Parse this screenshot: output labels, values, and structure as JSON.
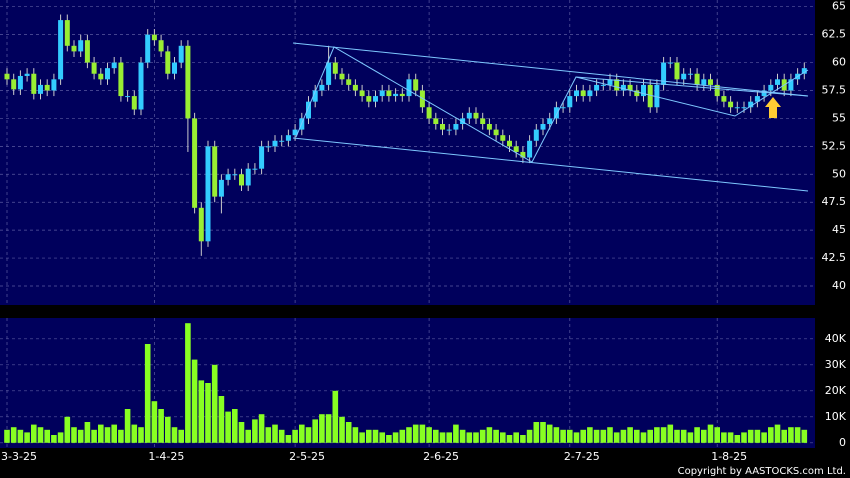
{
  "copyright": "Copyright by AASTOCKS.com Ltd.",
  "chart_data": [
    {
      "type": "candlestick",
      "up_color": "#33ccff",
      "down_color": "#99ee33",
      "grid": true,
      "ylim": [
        38.3,
        65.6
      ],
      "yticks": [
        40,
        42.5,
        45,
        47.5,
        50,
        52.5,
        55,
        57.5,
        60,
        62.5,
        65
      ],
      "open": [
        59.0,
        58.5,
        57.6,
        58.8,
        59.0,
        57.2,
        58.0,
        57.5,
        58.5,
        63.8,
        61.5,
        61.0,
        62.0,
        60.0,
        59.0,
        58.5,
        59.5,
        60.0,
        57.0,
        57.0,
        55.8,
        60.0,
        62.5,
        62.0,
        61.0,
        59.0,
        60.0,
        61.5,
        55.0,
        47.0,
        44.0,
        52.5,
        48.0,
        49.5,
        50.0,
        50.0,
        49.0,
        50.5,
        50.5,
        52.5,
        52.5,
        53.0,
        53.0,
        53.5,
        54.0,
        55.0,
        56.5,
        57.5,
        58.0,
        60.0,
        59.0,
        58.5,
        58.0,
        57.5,
        57.0,
        56.5,
        57.0,
        57.5,
        57.0,
        57.2,
        57.0,
        58.5,
        57.5,
        56.0,
        55.0,
        54.5,
        54.0,
        54.0,
        54.5,
        55.0,
        55.5,
        55.0,
        54.5,
        54.0,
        53.5,
        53.0,
        52.5,
        52.0,
        51.5,
        53.0,
        54.0,
        54.5,
        55.0,
        56.0,
        56.0,
        57.0,
        57.5,
        57.0,
        57.5,
        58.0,
        58.0,
        58.5,
        57.5,
        58.0,
        57.5,
        57.0,
        58.0,
        56.0,
        58.0,
        60.0,
        60.0,
        58.5,
        59.0,
        59.0,
        58.0,
        58.5,
        58.0,
        57.0,
        56.5,
        56.0,
        56.0,
        56.0,
        56.5,
        57.0,
        57.5,
        58.0,
        58.5,
        57.5,
        58.5,
        59.0
      ],
      "high": [
        59.5,
        59.0,
        59.3,
        59.5,
        59.5,
        58.5,
        58.5,
        59.0,
        64.3,
        64.3,
        62.0,
        62.5,
        62.5,
        60.5,
        59.5,
        60.0,
        60.5,
        60.5,
        57.5,
        57.5,
        60.5,
        63.0,
        63.0,
        62.5,
        61.5,
        60.5,
        62.0,
        62.0,
        55.5,
        47.5,
        53.0,
        53.0,
        50.0,
        50.5,
        50.5,
        50.5,
        51.0,
        51.0,
        53.0,
        53.0,
        53.5,
        53.5,
        54.0,
        54.5,
        55.5,
        57.0,
        58.0,
        58.5,
        61.5,
        60.5,
        59.5,
        59.0,
        58.5,
        58.0,
        57.5,
        57.5,
        58.0,
        58.0,
        57.7,
        57.7,
        59.0,
        59.0,
        58.0,
        56.5,
        55.5,
        55.0,
        54.5,
        55.0,
        55.5,
        56.0,
        56.0,
        55.5,
        55.0,
        54.5,
        54.0,
        53.5,
        53.0,
        52.5,
        53.5,
        54.5,
        55.0,
        55.5,
        56.5,
        56.5,
        57.5,
        58.0,
        58.0,
        58.0,
        58.5,
        58.5,
        59.0,
        59.0,
        58.5,
        58.5,
        58.0,
        58.5,
        58.5,
        58.5,
        60.5,
        60.5,
        60.5,
        59.5,
        59.5,
        59.5,
        59.0,
        59.0,
        58.5,
        57.5,
        57.0,
        56.5,
        56.5,
        57.0,
        57.5,
        58.0,
        58.5,
        59.0,
        59.0,
        59.0,
        59.5,
        60.0
      ],
      "low": [
        58.0,
        57.1,
        57.1,
        58.3,
        56.7,
        56.7,
        57.0,
        57.0,
        58.0,
        61.0,
        60.5,
        60.5,
        59.5,
        58.5,
        58.0,
        58.0,
        59.0,
        56.5,
        56.5,
        55.3,
        55.3,
        59.5,
        61.5,
        60.5,
        58.5,
        58.5,
        59.5,
        52.0,
        46.5,
        42.7,
        43.5,
        47.5,
        46.5,
        49.0,
        49.5,
        48.5,
        48.5,
        50.0,
        50.0,
        52.0,
        52.0,
        52.5,
        52.5,
        53.0,
        53.5,
        54.5,
        56.0,
        57.0,
        57.5,
        58.5,
        58.0,
        57.5,
        57.0,
        56.5,
        56.0,
        56.0,
        56.5,
        56.5,
        56.5,
        56.5,
        56.5,
        57.0,
        55.5,
        54.5,
        54.0,
        53.5,
        53.5,
        53.5,
        54.0,
        54.5,
        54.5,
        54.0,
        53.5,
        53.0,
        52.5,
        52.0,
        51.5,
        51.0,
        51.0,
        52.5,
        53.5,
        54.0,
        54.5,
        55.5,
        55.5,
        56.5,
        56.5,
        56.5,
        57.0,
        57.5,
        57.5,
        57.0,
        57.0,
        57.0,
        56.5,
        56.5,
        55.5,
        55.5,
        57.5,
        59.5,
        58.0,
        58.0,
        58.5,
        57.5,
        57.5,
        57.5,
        56.5,
        56.0,
        55.5,
        55.5,
        55.5,
        55.5,
        56.0,
        56.5,
        57.0,
        57.5,
        57.0,
        57.0,
        58.0,
        58.5
      ],
      "close": [
        58.5,
        57.6,
        58.8,
        59.0,
        57.2,
        58.0,
        57.5,
        58.5,
        63.8,
        61.5,
        61.0,
        62.0,
        60.0,
        59.0,
        58.5,
        59.5,
        60.0,
        57.0,
        57.0,
        55.8,
        60.0,
        62.5,
        62.0,
        61.0,
        59.0,
        60.0,
        61.5,
        55.0,
        47.0,
        44.0,
        52.5,
        48.0,
        49.5,
        50.0,
        50.0,
        49.0,
        50.5,
        50.5,
        52.5,
        52.5,
        53.0,
        53.0,
        53.5,
        54.0,
        55.0,
        56.5,
        57.5,
        58.0,
        60.0,
        59.0,
        58.5,
        58.0,
        57.5,
        57.0,
        56.5,
        57.0,
        57.5,
        57.0,
        57.2,
        57.0,
        58.5,
        57.5,
        56.0,
        55.0,
        54.5,
        54.0,
        54.0,
        54.5,
        55.0,
        55.5,
        55.0,
        54.5,
        54.0,
        53.5,
        53.0,
        52.5,
        52.0,
        51.5,
        53.0,
        54.0,
        54.5,
        55.0,
        56.0,
        56.0,
        57.0,
        57.5,
        57.0,
        57.5,
        58.0,
        58.0,
        58.5,
        57.5,
        58.0,
        57.5,
        57.0,
        58.0,
        56.0,
        58.0,
        60.0,
        60.0,
        58.5,
        59.0,
        59.0,
        58.0,
        58.5,
        58.0,
        57.0,
        56.5,
        56.0,
        56.0,
        56.0,
        56.5,
        57.0,
        57.5,
        58.0,
        58.5,
        57.5,
        58.5,
        59.0,
        59.5
      ]
    },
    {
      "type": "bar",
      "color": "#88ff22",
      "grid": true,
      "ylim": [
        -2000,
        48000
      ],
      "yticks": [
        0,
        {
          "value": 10000,
          "label": "10K"
        },
        {
          "value": 20000,
          "label": "20K"
        },
        {
          "value": 30000,
          "label": "30K"
        },
        {
          "value": 40000,
          "label": "40K"
        }
      ],
      "categories": [
        "3-3-25",
        null,
        null,
        null,
        null,
        null,
        null,
        null,
        null,
        null,
        null,
        null,
        null,
        null,
        null,
        null,
        null,
        null,
        null,
        null,
        null,
        null,
        "1-4-25",
        null,
        null,
        null,
        null,
        null,
        null,
        null,
        null,
        null,
        null,
        null,
        null,
        null,
        null,
        null,
        null,
        null,
        null,
        null,
        null,
        "2-5-25",
        null,
        null,
        null,
        null,
        null,
        null,
        null,
        null,
        null,
        null,
        null,
        null,
        null,
        null,
        null,
        null,
        null,
        null,
        null,
        "2-6-25",
        null,
        null,
        null,
        null,
        null,
        null,
        null,
        null,
        null,
        null,
        null,
        null,
        null,
        null,
        null,
        null,
        null,
        null,
        null,
        null,
        "2-7-25",
        null,
        null,
        null,
        null,
        null,
        null,
        null,
        null,
        null,
        null,
        null,
        null,
        null,
        null,
        null,
        null,
        null,
        null,
        null,
        null,
        null,
        "1-8-25",
        null,
        null,
        null,
        null,
        null,
        null,
        null,
        null,
        null,
        null,
        null,
        null,
        null
      ],
      "values": [
        5000,
        6000,
        5000,
        4000,
        7000,
        6000,
        5000,
        3000,
        4000,
        10000,
        6000,
        5000,
        8000,
        5000,
        7000,
        6000,
        7000,
        5000,
        13000,
        7000,
        6000,
        38000,
        16000,
        13000,
        10000,
        6000,
        5000,
        46000,
        32000,
        24000,
        23000,
        30000,
        18000,
        12000,
        13000,
        8000,
        5000,
        9000,
        11000,
        6000,
        7000,
        5000,
        3000,
        5000,
        7000,
        6000,
        9000,
        11000,
        11000,
        20000,
        10000,
        8000,
        6000,
        4000,
        5000,
        5000,
        4000,
        3000,
        4000,
        5000,
        6000,
        7000,
        7000,
        6000,
        5000,
        4000,
        4000,
        7000,
        5000,
        4000,
        4000,
        5000,
        6000,
        5000,
        4000,
        3000,
        4000,
        3000,
        5000,
        8000,
        8000,
        7000,
        6000,
        5000,
        5000,
        4000,
        5000,
        6000,
        5000,
        5000,
        6000,
        4000,
        5000,
        6000,
        5000,
        4000,
        5000,
        6000,
        6000,
        7000,
        5000,
        5000,
        4000,
        6000,
        5000,
        7000,
        6000,
        4000,
        4000,
        3000,
        4000,
        5000,
        5000,
        4000,
        6000,
        7000,
        5000,
        6000,
        6000,
        5000
      ]
    }
  ]
}
